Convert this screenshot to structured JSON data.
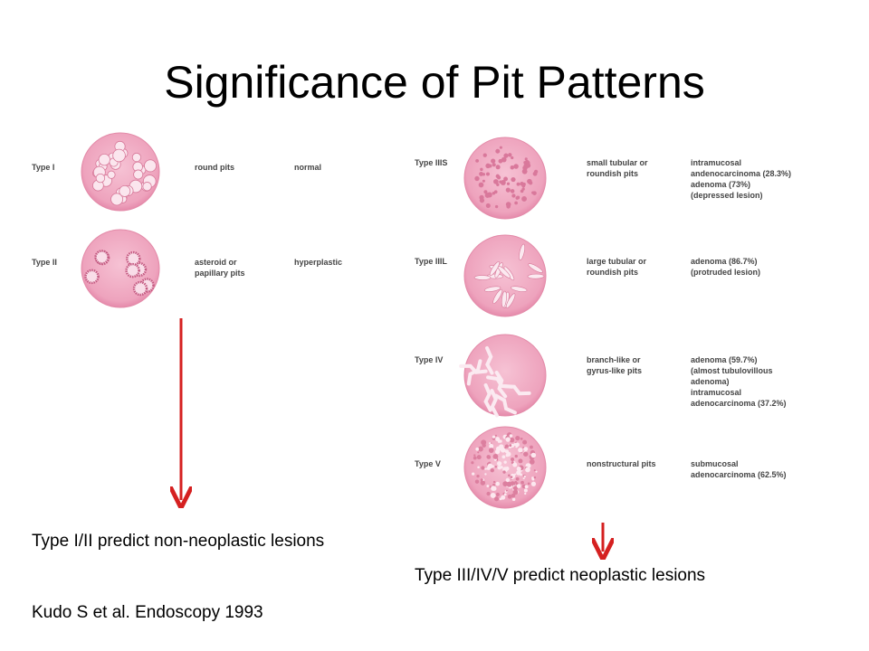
{
  "title": "Significance of Pit Patterns",
  "left_table": {
    "rows": [
      {
        "type": "Type I",
        "pattern": [
          "round pits"
        ],
        "finding": [
          "normal"
        ]
      },
      {
        "type": "Type II",
        "pattern": [
          "asteroid or",
          "papillary pits"
        ],
        "finding": [
          "hyperplastic"
        ]
      }
    ]
  },
  "right_table": {
    "rows": [
      {
        "type": "Type IIIS",
        "pattern": [
          "small tubular or",
          "roundish pits"
        ],
        "finding": [
          "intramucosal",
          "andenocarcinoma (28.3%)",
          "adenoma (73%)",
          "(depressed lesion)"
        ]
      },
      {
        "type": "Type IIIL",
        "pattern": [
          "large tubular or",
          "roundish pits"
        ],
        "finding": [
          "adenoma (86.7%)",
          "(protruded lesion)"
        ]
      },
      {
        "type": "Type IV",
        "pattern": [
          "branch-like or",
          "gyrus-like pits"
        ],
        "finding": [
          "adenoma (59.7%)",
          "(almost tubulovillous",
          "adenoma)",
          "intramucosal",
          "adenocarcinoma (37.2%)"
        ]
      },
      {
        "type": "Type V",
        "pattern": [
          "nonstructural pits"
        ],
        "finding": [
          "submucosal",
          "adenocarcinoma (62.5%)"
        ]
      }
    ]
  },
  "captions": {
    "left": "Type I/II predict non-neoplastic lesions",
    "right": "Type III/IV/V predict neoplastic lesions",
    "citation": "Kudo S et al. Endoscopy 1993"
  }
}
